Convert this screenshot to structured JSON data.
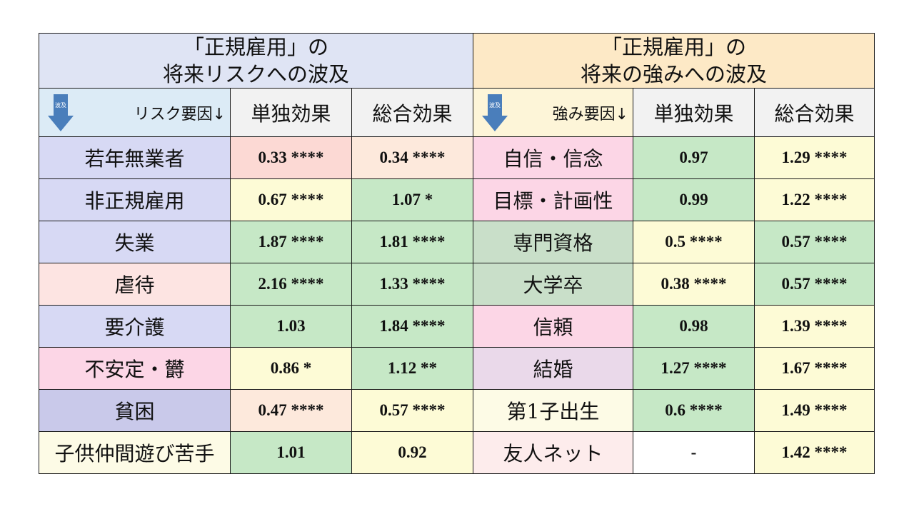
{
  "risk_title": [
    "「正規雇用」の",
    "将来リスクへの波及"
  ],
  "strength_title": [
    "「正規雇用」の",
    "将来の強みへの波及"
  ],
  "arrow_label": "波及",
  "risk_factor_header": "リスク要因↓",
  "strength_factor_header": "強み要因↓",
  "single_effect_header": "単独効果",
  "total_effect_header": "総合効果",
  "colors": {
    "risk_title_bg": "#dfe4f4",
    "strength_title_bg": "#fde9c6",
    "arrow": "#4a7ebb"
  },
  "rows": [
    {
      "risk": {
        "label": "若年無業者",
        "single": "0.33 ****",
        "total": "0.34 ****",
        "bg": "#d7d9f4",
        "single_bg": "#fcd9d4",
        "total_bg": "#fde9dc"
      },
      "strength": {
        "label": "自信・信念",
        "single": "0.97",
        "total": "1.29 ****",
        "bg": "#fcd6e6",
        "single_bg": "#c6e8c6",
        "total_bg": "#fdfbd6"
      }
    },
    {
      "risk": {
        "label": "非正規雇用",
        "single": "0.67 ****",
        "total": "1.07 *",
        "bg": "#d7d9f4",
        "single_bg": "#fdfbd6",
        "total_bg": "#c6e8c6"
      },
      "strength": {
        "label": "目標・計画性",
        "single": "0.99",
        "total": "1.22 ****",
        "bg": "#fcd6e6",
        "single_bg": "#c6e8c6",
        "total_bg": "#fdfbd6"
      }
    },
    {
      "risk": {
        "label": "失業",
        "single": "1.87 ****",
        "total": "1.81 ****",
        "bg": "#d7d9f4",
        "single_bg": "#c6e8c6",
        "total_bg": "#c6e8c6"
      },
      "strength": {
        "label": "専門資格",
        "single": "0.5 ****",
        "total": "0.57 ****",
        "bg": "#c9dfc9",
        "single_bg": "#fdfbd6",
        "total_bg": "#c6e8c6"
      }
    },
    {
      "risk": {
        "label": "虐待",
        "single": "2.16 ****",
        "total": "1.33 ****",
        "bg": "#fde4e2",
        "single_bg": "#c6e8c6",
        "total_bg": "#c6e8c6"
      },
      "strength": {
        "label": "大学卒",
        "single": "0.38 ****",
        "total": "0.57 ****",
        "bg": "#c9dfc9",
        "single_bg": "#fdfbd6",
        "total_bg": "#c6e8c6"
      }
    },
    {
      "risk": {
        "label": "要介護",
        "single": "1.03",
        "total": "1.84 ****",
        "bg": "#d7d9f4",
        "single_bg": "#c6e8c6",
        "total_bg": "#c6e8c6"
      },
      "strength": {
        "label": "信頼",
        "single": "0.98",
        "total": "1.39 ****",
        "bg": "#fcd6e6",
        "single_bg": "#c6e8c6",
        "total_bg": "#fdfbd6"
      }
    },
    {
      "risk": {
        "label": "不安定・欝",
        "single": "0.86 *",
        "total": "1.12 **",
        "bg": "#fcd6e6",
        "single_bg": "#fdfbd6",
        "total_bg": "#c6e8c6"
      },
      "strength": {
        "label": "結婚",
        "single": "1.27 ****",
        "total": "1.67 ****",
        "bg": "#ead9ea",
        "single_bg": "#c6e8c6",
        "total_bg": "#fdfbd6"
      }
    },
    {
      "risk": {
        "label": "貧困",
        "single": "0.47 ****",
        "total": "0.57 ****",
        "bg": "#c9c9ea",
        "single_bg": "#fde9dc",
        "total_bg": "#fdfbd6"
      },
      "strength": {
        "label": "第1子出生",
        "single": "0.6 ****",
        "total": "1.49 ****",
        "bg": "#fdfbe6",
        "single_bg": "#c6e8c6",
        "total_bg": "#fdfbd6"
      }
    },
    {
      "risk": {
        "label": "子供仲間遊び苦手",
        "single": "1.01",
        "total": "0.92",
        "bg": "#fdfbe6",
        "single_bg": "#c6e8c6",
        "total_bg": "#fdfbd6"
      },
      "strength": {
        "label": "友人ネット",
        "single": "-",
        "total": "1.42 ****",
        "bg": "#fdecec",
        "single_bg": "#ffffff",
        "total_bg": "#fdfbd6"
      }
    }
  ]
}
